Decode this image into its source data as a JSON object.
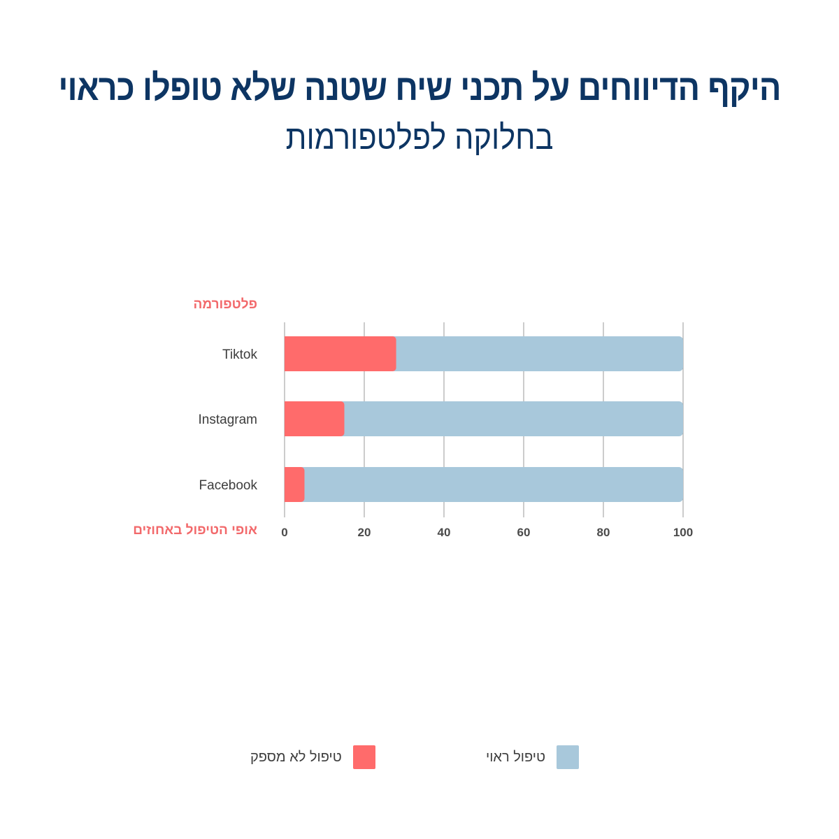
{
  "title": "היקף הדיווחים על תכני שיח שטנה שלא טופלו כראוי",
  "subtitle": "בחלוקה לפלטפורמות",
  "chart_data": {
    "type": "bar",
    "orientation": "horizontal",
    "stacked": true,
    "ylabel": "פלטפורמה",
    "xlabel": "אופי הטיפול באחוזים",
    "categories": [
      "Tiktok",
      "Instagram",
      "Facebook"
    ],
    "series": [
      {
        "name": "טיפול לא מספק",
        "values": [
          28,
          15,
          5
        ],
        "color": "#ff6b6b"
      },
      {
        "name": "טיפול ראוי",
        "values": [
          72,
          85,
          95
        ],
        "color": "#a8c8db"
      }
    ],
    "xlim": [
      0,
      100
    ],
    "xticks": [
      0,
      20,
      40,
      60,
      80,
      100
    ],
    "grid": true,
    "legend_position": "bottom"
  },
  "legend": {
    "items": [
      {
        "label": "טיפול ראוי",
        "color": "#a8c8db"
      },
      {
        "label": "טיפול לא מספק",
        "color": "#ff6b6b"
      }
    ]
  }
}
